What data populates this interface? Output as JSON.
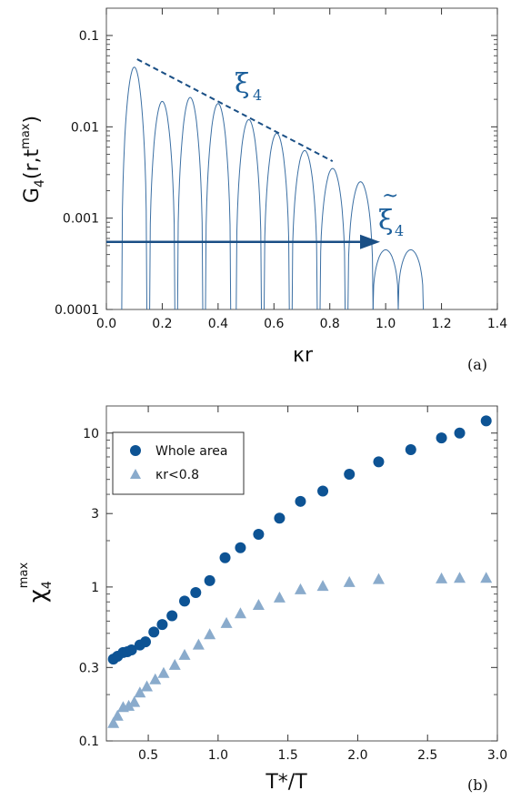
{
  "chart_data": [
    {
      "panel_label": "(a)",
      "type": "line",
      "xlabel": "κr",
      "ylabel_base": "G",
      "ylabel_sub": "4",
      "ylabel_args": "(r,t",
      "ylabel_sup": "max",
      "ylabel_close": ")",
      "xlim": [
        0.0,
        1.4
      ],
      "ylim": [
        0.0001,
        0.1
      ],
      "yscale": "log",
      "x_ticks": [
        "0.0",
        "0.2",
        "0.4",
        "0.6",
        "0.8",
        "1.0",
        "1.2",
        "1.4"
      ],
      "y_ticks": [
        "0.1",
        "0.01",
        "0.001",
        "0.0001"
      ],
      "series_color": "#3b6fa3",
      "peaks": [
        {
          "x": 0.1,
          "y": 0.045
        },
        {
          "x": 0.2,
          "y": 0.019
        },
        {
          "x": 0.3,
          "y": 0.021
        },
        {
          "x": 0.4,
          "y": 0.018
        },
        {
          "x": 0.51,
          "y": 0.012
        },
        {
          "x": 0.61,
          "y": 0.0085
        },
        {
          "x": 0.71,
          "y": 0.0055
        },
        {
          "x": 0.81,
          "y": 0.0035
        },
        {
          "x": 0.91,
          "y": 0.0025
        },
        {
          "x": 1.0,
          "y": 0.00045
        },
        {
          "x": 1.09,
          "y": 0.00045
        }
      ],
      "annotations": {
        "xi4_symbol": "ξ",
        "xi4_sub": "4",
        "xi4_line": {
          "x1": 0.11,
          "y1": 0.055,
          "x2": 0.81,
          "y2": 0.0042
        },
        "xi4tilde_symbol": "ξ",
        "xi4tilde_sub": "4",
        "xi4tilde_arrow": {
          "x1": 0.0,
          "x2": 0.98,
          "y": 0.00055
        }
      }
    },
    {
      "panel_label": "(b)",
      "type": "scatter",
      "xlabel": "T*/T",
      "ylabel_base": "χ",
      "ylabel_sub": "4",
      "ylabel_sup": "max",
      "xlim": [
        0.2,
        3.0
      ],
      "ylim": [
        0.1,
        15
      ],
      "yscale": "log",
      "x_ticks": [
        "0.5",
        "1.0",
        "1.5",
        "2.0",
        "2.5",
        "3.0"
      ],
      "y_ticks": [
        "10",
        "3",
        "1",
        "0.3",
        "0.1"
      ],
      "legend_position": "top-left",
      "series": [
        {
          "name": "Whole area",
          "marker": "circle",
          "color": "#0d5394",
          "points": [
            [
              0.25,
              0.34
            ],
            [
              0.28,
              0.355
            ],
            [
              0.32,
              0.375
            ],
            [
              0.35,
              0.38
            ],
            [
              0.38,
              0.39
            ],
            [
              0.44,
              0.42
            ],
            [
              0.48,
              0.44
            ],
            [
              0.54,
              0.51
            ],
            [
              0.6,
              0.57
            ],
            [
              0.67,
              0.65
            ],
            [
              0.76,
              0.81
            ],
            [
              0.84,
              0.92
            ],
            [
              0.94,
              1.1
            ],
            [
              1.05,
              1.55
            ],
            [
              1.16,
              1.8
            ],
            [
              1.29,
              2.2
            ],
            [
              1.44,
              2.8
            ],
            [
              1.59,
              3.6
            ],
            [
              1.75,
              4.2
            ],
            [
              1.94,
              5.4
            ],
            [
              2.15,
              6.5
            ],
            [
              2.38,
              7.8
            ],
            [
              2.6,
              9.3
            ],
            [
              2.73,
              10.0
            ],
            [
              2.92,
              12.0
            ]
          ]
        },
        {
          "name": "κr<0.8",
          "marker": "triangle",
          "color": "#8aabcc",
          "points": [
            [
              0.25,
              0.13
            ],
            [
              0.28,
              0.145
            ],
            [
              0.32,
              0.165
            ],
            [
              0.36,
              0.168
            ],
            [
              0.4,
              0.178
            ],
            [
              0.44,
              0.205
            ],
            [
              0.49,
              0.225
            ],
            [
              0.55,
              0.25
            ],
            [
              0.61,
              0.275
            ],
            [
              0.69,
              0.31
            ],
            [
              0.76,
              0.36
            ],
            [
              0.86,
              0.42
            ],
            [
              0.94,
              0.49
            ],
            [
              1.06,
              0.58
            ],
            [
              1.16,
              0.67
            ],
            [
              1.29,
              0.76
            ],
            [
              1.44,
              0.85
            ],
            [
              1.59,
              0.96
            ],
            [
              1.75,
              1.01
            ],
            [
              1.94,
              1.07
            ],
            [
              2.15,
              1.12
            ],
            [
              2.6,
              1.13
            ],
            [
              2.73,
              1.14
            ],
            [
              2.92,
              1.14
            ]
          ]
        }
      ]
    }
  ]
}
